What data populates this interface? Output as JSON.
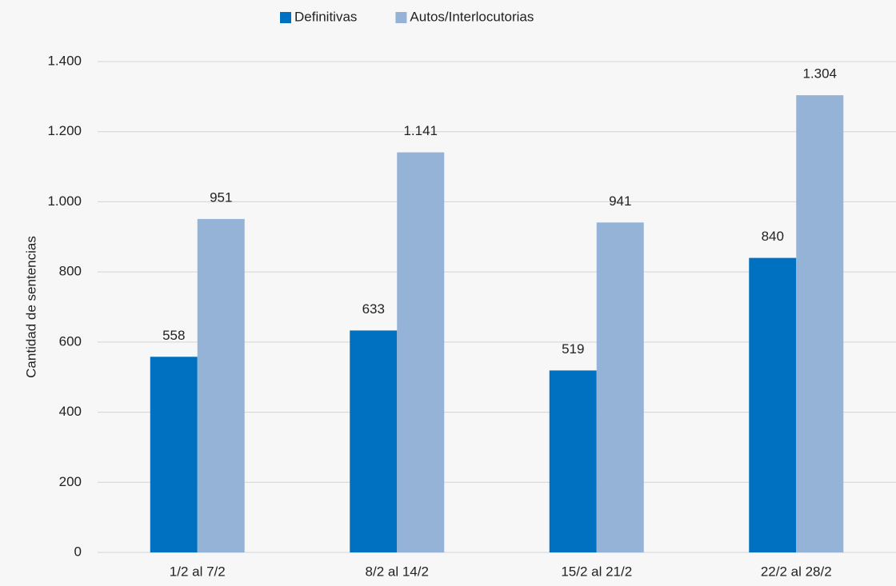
{
  "chart_data": {
    "type": "bar",
    "y_label": "Cantidad de sentencias",
    "categories": [
      "1/2 al 7/2",
      "8/2 al 14/2",
      "15/2 al 21/2",
      "22/2 al 28/2"
    ],
    "series": [
      {
        "name": "Definitivas",
        "color": "#0070c0",
        "values": [
          558,
          633,
          519,
          840
        ]
      },
      {
        "name": "Autos/Interlocutorias",
        "color": "#95b3d7",
        "values": [
          951,
          1141,
          941,
          1304
        ],
        "value_labels": [
          "951",
          "1.141",
          "941",
          "1.304"
        ]
      }
    ],
    "ylim": [
      0,
      1400
    ],
    "yticks": [
      0,
      200,
      400,
      600,
      800,
      {
        "value": 1000,
        "label": "1.000"
      },
      {
        "value": 1200,
        "label": "1.200"
      },
      {
        "value": 1400,
        "label": "1.400"
      }
    ],
    "grid": true,
    "legend": "top"
  }
}
